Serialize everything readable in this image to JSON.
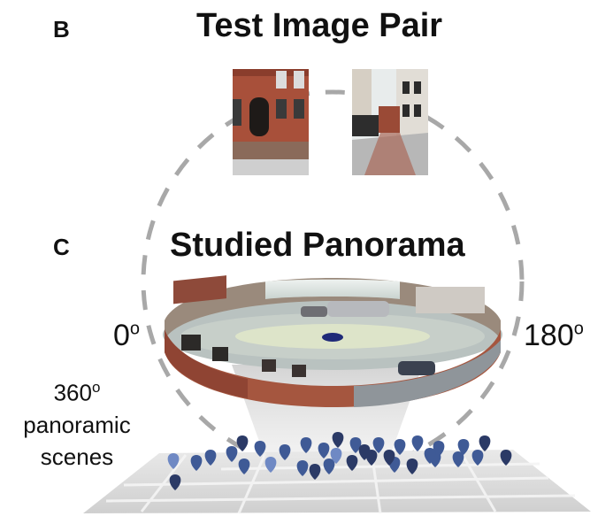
{
  "panel_b": {
    "letter": "B",
    "title": "Test Image Pair"
  },
  "panel_c": {
    "letter": "C",
    "title": "Studied Panorama"
  },
  "angles": {
    "left": "0",
    "right": "180",
    "degree_mark": "o"
  },
  "scenes_label": {
    "number": "360",
    "degree_mark": "o",
    "line2": "panoramic",
    "line3": "scenes"
  },
  "colors": {
    "dashed_circle": "#a8a8a8",
    "marker_dark": "#2b3a66",
    "marker_mid": "#3f5a96",
    "marker_light": "#6f89c4",
    "brick": "#a5563f",
    "sky": "#e6ece8",
    "ground_map": "#d6d6d6",
    "beam": "#d9d9d9"
  },
  "icons": [
    "map-pin-icon"
  ]
}
